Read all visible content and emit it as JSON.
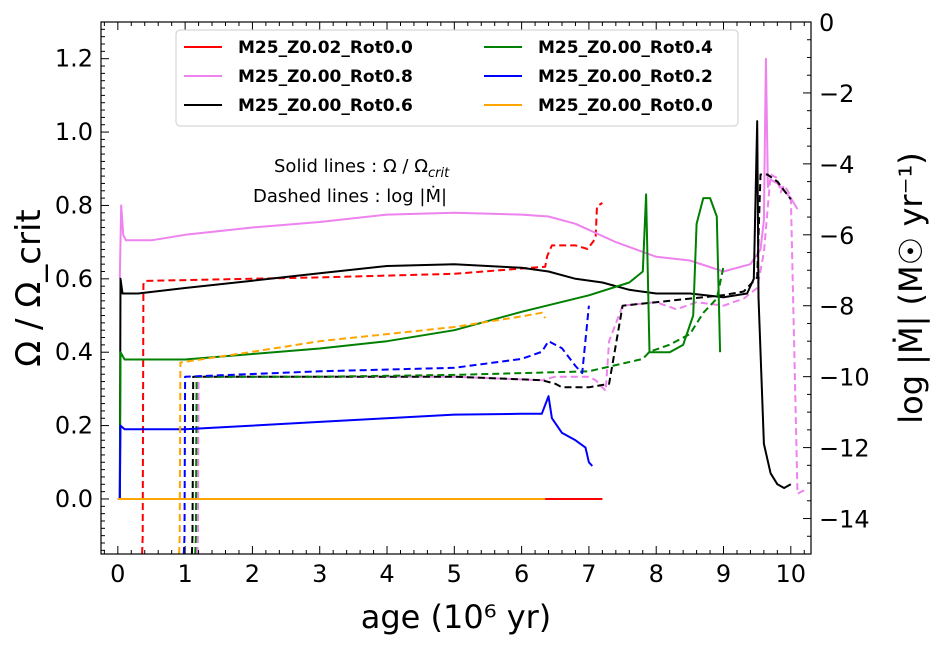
{
  "chart_data": {
    "type": "line",
    "xlabel": "age (10⁶ yr)",
    "ylabel_left": "Ω / Ω_crit",
    "ylabel_right": "log |Ṁ| (M☉ yr⁻¹)",
    "xlim": [
      -0.25,
      10.3
    ],
    "ylim_left": [
      -0.15,
      1.3
    ],
    "ylim_right": [
      -15,
      0
    ],
    "x_ticks": [
      "0",
      "1",
      "2",
      "3",
      "4",
      "5",
      "6",
      "7",
      "8",
      "9",
      "10"
    ],
    "y_left_ticks": [
      "0.0",
      "0.2",
      "0.4",
      "0.6",
      "0.8",
      "1.0",
      "1.2"
    ],
    "y_right_ticks": [
      "0",
      "−2",
      "−4",
      "−6",
      "−8",
      "−10",
      "−12",
      "−14"
    ],
    "grid": false,
    "legend_position": "top",
    "annotation_lines": [
      "Solid lines  : Ω / Ω",
      "Dashed lines : log |Ṁ|"
    ],
    "series": [
      {
        "name": "M25_Z0.02_Rot0.0",
        "color": "#ff0000",
        "omega": [
          [
            0,
            0
          ],
          [
            6.35,
            0
          ],
          [
            7.2,
            0
          ]
        ],
        "mdot": [
          [
            0.36,
            -15
          ],
          [
            0.37,
            -14.5
          ],
          [
            0.38,
            -7.4
          ],
          [
            0.4,
            -7.3
          ],
          [
            3,
            -7.2
          ],
          [
            5,
            -7.1
          ],
          [
            6.35,
            -6.9
          ],
          [
            6.38,
            -6.6
          ],
          [
            6.45,
            -6.3
          ],
          [
            6.8,
            -6.3
          ],
          [
            6.98,
            -6.4
          ],
          [
            7.1,
            -6.1
          ],
          [
            7.12,
            -5.2
          ],
          [
            7.2,
            -5.1
          ]
        ]
      },
      {
        "name": "M25_Z0.00_Rot0.8",
        "color": "#ee82ee",
        "omega": [
          [
            0.03,
            0.6
          ],
          [
            0.05,
            0.8
          ],
          [
            0.08,
            0.72
          ],
          [
            0.12,
            0.705
          ],
          [
            0.5,
            0.705
          ],
          [
            1,
            0.72
          ],
          [
            2,
            0.74
          ],
          [
            3,
            0.755
          ],
          [
            4,
            0.775
          ],
          [
            5,
            0.78
          ],
          [
            6,
            0.775
          ],
          [
            6.4,
            0.77
          ],
          [
            6.8,
            0.75
          ],
          [
            7.4,
            0.7
          ],
          [
            8,
            0.66
          ],
          [
            8.5,
            0.65
          ],
          [
            9,
            0.62
          ],
          [
            9.4,
            0.64
          ],
          [
            9.55,
            0.68
          ],
          [
            9.6,
            0.76
          ],
          [
            9.63,
            1.2
          ],
          [
            9.66,
            0.85
          ],
          [
            9.7,
            0.87
          ],
          [
            9.8,
            0.86
          ],
          [
            10.0,
            0.82
          ],
          [
            10.1,
            0.79
          ]
        ],
        "mdot": [
          [
            1.18,
            -15
          ],
          [
            1.19,
            -14.5
          ],
          [
            1.2,
            -10.0
          ],
          [
            3,
            -10.0
          ],
          [
            5,
            -10.0
          ],
          [
            6.3,
            -10.1
          ],
          [
            6.5,
            -10.0
          ],
          [
            7.0,
            -10.0
          ],
          [
            7.1,
            -10.1
          ],
          [
            7.25,
            -10.4
          ],
          [
            7.3,
            -9.0
          ],
          [
            7.5,
            -8.0
          ],
          [
            8.0,
            -7.9
          ],
          [
            8.3,
            -8.1
          ],
          [
            8.6,
            -7.9
          ],
          [
            9.0,
            -8.0
          ],
          [
            9.3,
            -7.8
          ],
          [
            9.5,
            -7.5
          ],
          [
            9.6,
            -6.5
          ],
          [
            9.7,
            -4.3
          ],
          [
            9.8,
            -4.4
          ],
          [
            9.85,
            -4.8
          ],
          [
            9.9,
            -4.6
          ],
          [
            10.0,
            -4.9
          ],
          [
            10.1,
            -13.3
          ],
          [
            10.2,
            -13.2
          ]
        ]
      },
      {
        "name": "M25_Z0.00_Rot0.6",
        "color": "#000000",
        "omega": [
          [
            0.03,
            0.0
          ],
          [
            0.04,
            0.6
          ],
          [
            0.07,
            0.56
          ],
          [
            0.3,
            0.56
          ],
          [
            1,
            0.575
          ],
          [
            2,
            0.595
          ],
          [
            3,
            0.615
          ],
          [
            4,
            0.635
          ],
          [
            5,
            0.64
          ],
          [
            6,
            0.63
          ],
          [
            6.4,
            0.62
          ],
          [
            6.8,
            0.6
          ],
          [
            7.2,
            0.59
          ],
          [
            7.6,
            0.57
          ],
          [
            8,
            0.56
          ],
          [
            8.5,
            0.56
          ],
          [
            9,
            0.55
          ],
          [
            9.35,
            0.56
          ],
          [
            9.45,
            0.6
          ],
          [
            9.5,
            1.03
          ],
          [
            9.52,
            0.55
          ],
          [
            9.56,
            0.35
          ],
          [
            9.6,
            0.15
          ],
          [
            9.7,
            0.07
          ],
          [
            9.8,
            0.04
          ],
          [
            9.9,
            0.03
          ],
          [
            10.0,
            0.04
          ]
        ],
        "mdot": [
          [
            1.1,
            -15
          ],
          [
            1.11,
            -14.5
          ],
          [
            1.12,
            -10.0
          ],
          [
            3,
            -10.0
          ],
          [
            5,
            -10.0
          ],
          [
            6.3,
            -10.1
          ],
          [
            6.5,
            -10.2
          ],
          [
            6.6,
            -10.3
          ],
          [
            7.0,
            -10.3
          ],
          [
            7.3,
            -10.2
          ],
          [
            7.5,
            -8.0
          ],
          [
            8.0,
            -7.9
          ],
          [
            8.5,
            -7.8
          ],
          [
            9.0,
            -7.7
          ],
          [
            9.3,
            -7.6
          ],
          [
            9.5,
            -7.2
          ],
          [
            9.55,
            -4.3
          ],
          [
            9.65,
            -4.3
          ],
          [
            9.8,
            -4.5
          ],
          [
            10.0,
            -5.0
          ]
        ]
      },
      {
        "name": "M25_Z0.00_Rot0.4",
        "color": "#008000",
        "omega": [
          [
            0.03,
            0.0
          ],
          [
            0.04,
            0.4
          ],
          [
            0.1,
            0.38
          ],
          [
            1,
            0.38
          ],
          [
            2,
            0.395
          ],
          [
            3,
            0.41
          ],
          [
            4,
            0.43
          ],
          [
            5,
            0.46
          ],
          [
            6,
            0.51
          ],
          [
            7,
            0.555
          ],
          [
            7.6,
            0.59
          ],
          [
            7.8,
            0.62
          ],
          [
            7.85,
            0.83
          ],
          [
            7.9,
            0.4
          ],
          [
            8.2,
            0.4
          ],
          [
            8.4,
            0.42
          ],
          [
            8.55,
            0.5
          ],
          [
            8.6,
            0.75
          ],
          [
            8.7,
            0.82
          ],
          [
            8.8,
            0.82
          ],
          [
            8.9,
            0.77
          ],
          [
            8.95,
            0.4
          ]
        ],
        "mdot": [
          [
            1.15,
            -15
          ],
          [
            1.16,
            -14.5
          ],
          [
            1.17,
            -10.0
          ],
          [
            3,
            -10.0
          ],
          [
            5,
            -9.95
          ],
          [
            6.0,
            -9.9
          ],
          [
            7.0,
            -9.85
          ],
          [
            7.8,
            -9.5
          ],
          [
            7.9,
            -9.3
          ],
          [
            8.2,
            -9.1
          ],
          [
            8.5,
            -8.8
          ],
          [
            8.7,
            -8.2
          ],
          [
            8.9,
            -7.8
          ],
          [
            9.0,
            -6.9
          ]
        ]
      },
      {
        "name": "M25_Z0.00_Rot0.2",
        "color": "#0000ff",
        "omega": [
          [
            0.03,
            0.0
          ],
          [
            0.04,
            0.2
          ],
          [
            0.1,
            0.19
          ],
          [
            1,
            0.19
          ],
          [
            2,
            0.2
          ],
          [
            3,
            0.21
          ],
          [
            4,
            0.22
          ],
          [
            5,
            0.23
          ],
          [
            6,
            0.232
          ],
          [
            6.3,
            0.232
          ],
          [
            6.4,
            0.28
          ],
          [
            6.45,
            0.22
          ],
          [
            6.6,
            0.18
          ],
          [
            6.8,
            0.16
          ],
          [
            6.95,
            0.14
          ],
          [
            7.0,
            0.1
          ],
          [
            7.05,
            0.09
          ]
        ],
        "mdot": [
          [
            0.98,
            -15
          ],
          [
            0.99,
            -14.5
          ],
          [
            1.0,
            -10.0
          ],
          [
            3,
            -9.85
          ],
          [
            5,
            -9.75
          ],
          [
            6.0,
            -9.5
          ],
          [
            6.3,
            -9.3
          ],
          [
            6.4,
            -9.0
          ],
          [
            6.6,
            -9.2
          ],
          [
            6.8,
            -9.7
          ],
          [
            6.9,
            -9.9
          ],
          [
            7.0,
            -8.0
          ]
        ]
      },
      {
        "name": "M25_Z0.00_Rot0.0",
        "color": "#ffa500",
        "omega": [
          [
            0.0,
            0.0
          ],
          [
            6.35,
            0.0
          ]
        ],
        "mdot": [
          [
            0.91,
            -15
          ],
          [
            0.92,
            -14.5
          ],
          [
            0.93,
            -9.6
          ],
          [
            2,
            -9.3
          ],
          [
            3,
            -9.0
          ],
          [
            4,
            -8.8
          ],
          [
            5,
            -8.6
          ],
          [
            6.0,
            -8.3
          ],
          [
            6.3,
            -8.2
          ],
          [
            6.35,
            -8.35
          ]
        ]
      }
    ]
  }
}
